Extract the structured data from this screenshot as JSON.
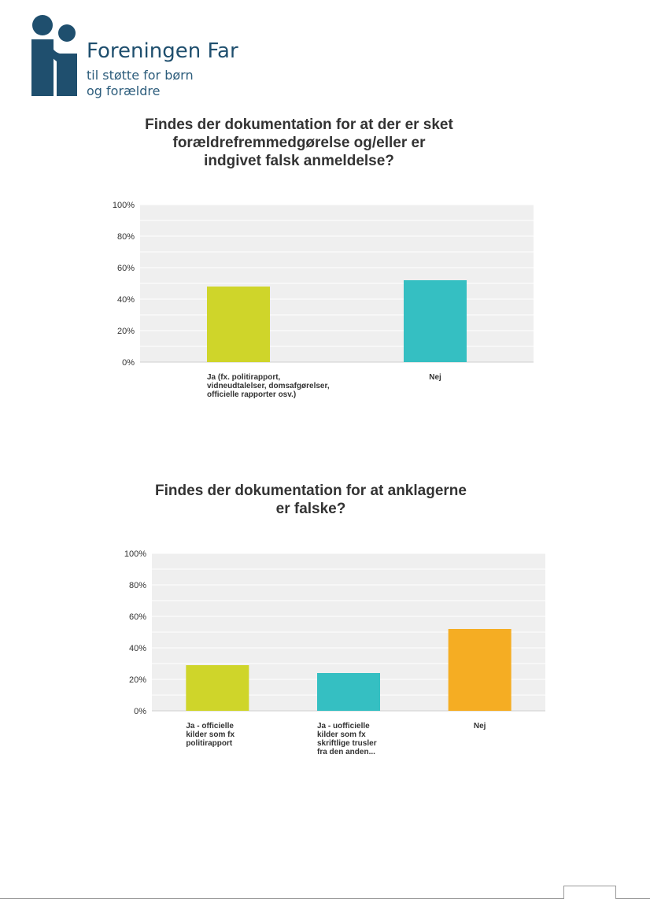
{
  "logo": {
    "name": "Foreningen Far",
    "tagline_line1": "til støtte for børn",
    "tagline_line2": "og forældre",
    "color": "#1f4f6e"
  },
  "colors": {
    "bar_green": "#cfd52a",
    "bar_teal": "#35bfc2",
    "bar_orange": "#f5ad23",
    "plot_bg": "#efefef",
    "grid": "#ffffff",
    "text": "#333333"
  },
  "chart_data": [
    {
      "type": "bar",
      "title_lines": [
        "Findes der dokumentation for at der er sket",
        "forældrefremmedgørelse og/eller er",
        "indgivet falsk anmeldelse?"
      ],
      "ylim": [
        0,
        100
      ],
      "yticks": [
        "0%",
        "20%",
        "40%",
        "60%",
        "80%",
        "100%"
      ],
      "grid": true,
      "categories": [
        [
          "Ja (fx. politirapport,",
          "vidneudtalelser, domsafgørelser,",
          "officielle rapporter osv.)"
        ],
        [
          "Nej"
        ]
      ],
      "values": [
        48,
        52
      ],
      "bar_colors": [
        "#cfd52a",
        "#35bfc2"
      ]
    },
    {
      "type": "bar",
      "title_lines": [
        "Findes der dokumentation for at anklagerne",
        "er falske?"
      ],
      "ylim": [
        0,
        100
      ],
      "yticks": [
        "0%",
        "20%",
        "40%",
        "60%",
        "80%",
        "100%"
      ],
      "grid": true,
      "categories": [
        [
          "Ja - officielle",
          "kilder som fx",
          "politirapport"
        ],
        [
          "Ja - uofficielle",
          "kilder som fx",
          "skriftlige trusler",
          "fra den anden..."
        ],
        [
          "Nej"
        ]
      ],
      "values": [
        29,
        24,
        52
      ],
      "bar_colors": [
        "#cfd52a",
        "#35bfc2",
        "#f5ad23"
      ]
    }
  ]
}
